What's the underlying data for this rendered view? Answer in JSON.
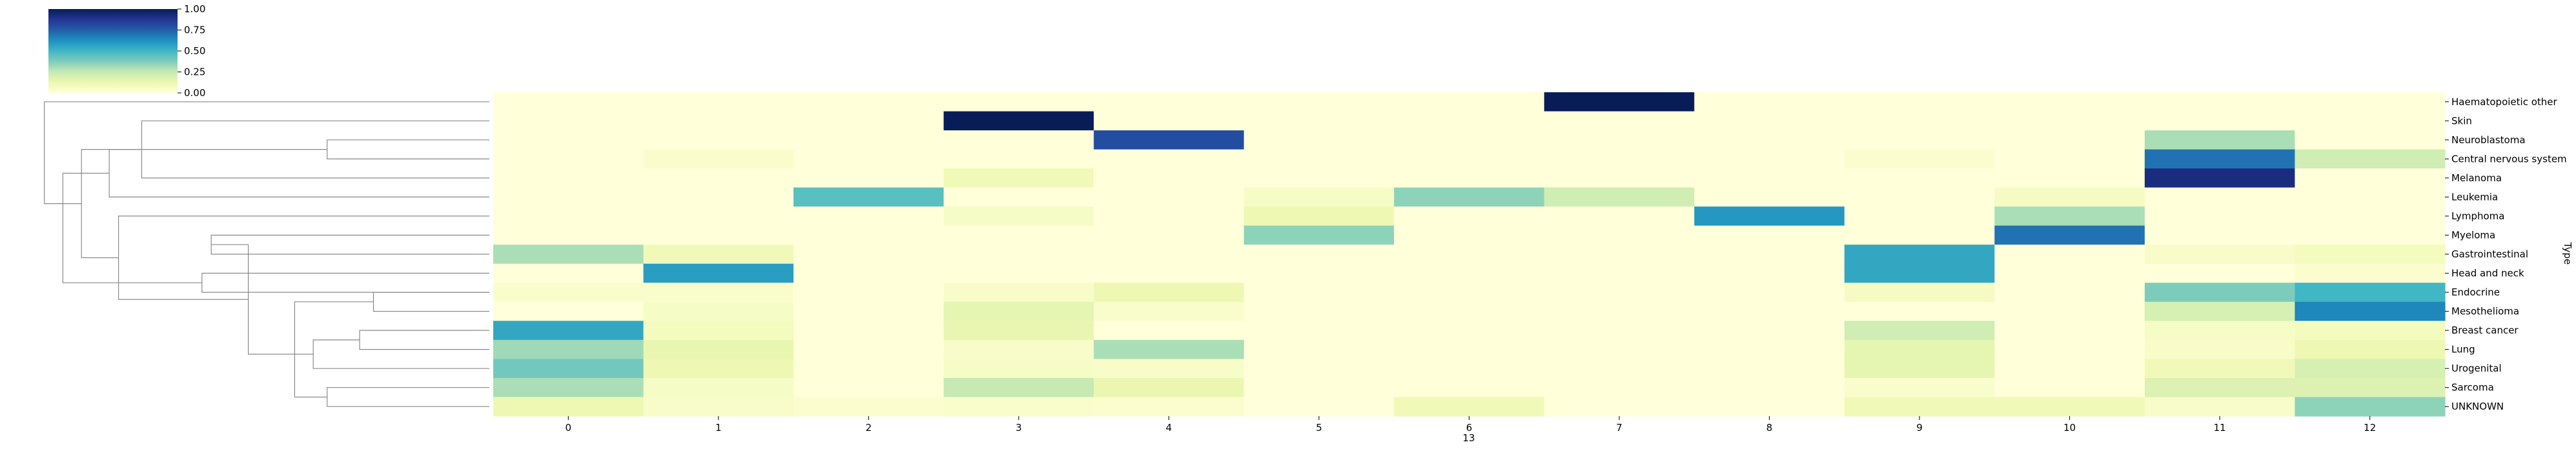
{
  "chart_data": {
    "type": "heatmap",
    "xlabel": "13",
    "ylabel": "Type",
    "colormap": "YlGnBu",
    "value_range": [
      0,
      1
    ],
    "colorbar_ticks": [
      "0.00",
      "0.25",
      "0.50",
      "0.75",
      "1.00"
    ],
    "columns": [
      "0",
      "1",
      "2",
      "3",
      "4",
      "5",
      "6",
      "7",
      "8",
      "9",
      "10",
      "11",
      "12"
    ],
    "rows": [
      "Haematopoietic other",
      "Skin",
      "Neuroblastoma",
      "Central nervous system",
      "Melanoma",
      "Leukemia",
      "Lymphoma",
      "Myeloma",
      "Gastrointestinal",
      "Head and neck",
      "Endocrine",
      "Mesothelioma",
      "Breast cancer",
      "Lung",
      "Urogenital",
      "Sarcoma",
      "UNKNOWN"
    ],
    "values": [
      [
        0.0,
        0.0,
        0.0,
        0.0,
        0.0,
        0.0,
        0.0,
        1.0,
        0.0,
        0.0,
        0.0,
        0.0,
        0.0
      ],
      [
        0.0,
        0.0,
        0.0,
        1.0,
        0.0,
        0.0,
        0.0,
        0.0,
        0.0,
        0.0,
        0.0,
        0.0,
        0.0
      ],
      [
        0.0,
        0.0,
        0.0,
        0.0,
        0.8,
        0.0,
        0.0,
        0.0,
        0.0,
        0.0,
        0.0,
        0.3,
        0.0
      ],
      [
        0.0,
        0.04,
        0.0,
        0.0,
        0.0,
        0.0,
        0.0,
        0.0,
        0.0,
        0.03,
        0.0,
        0.7,
        0.22
      ],
      [
        0.0,
        0.0,
        0.0,
        0.1,
        0.0,
        0.0,
        0.0,
        0.0,
        0.0,
        0.0,
        0.0,
        0.92,
        0.0
      ],
      [
        0.0,
        0.0,
        0.45,
        0.0,
        0.0,
        0.06,
        0.35,
        0.22,
        0.0,
        0.0,
        0.07,
        0.0,
        0.0
      ],
      [
        0.0,
        0.0,
        0.0,
        0.06,
        0.0,
        0.12,
        0.0,
        0.0,
        0.6,
        0.0,
        0.3,
        0.0,
        0.0
      ],
      [
        0.0,
        0.0,
        0.0,
        0.0,
        0.0,
        0.35,
        0.0,
        0.0,
        0.0,
        0.0,
        0.7,
        0.0,
        0.0
      ],
      [
        0.3,
        0.1,
        0.0,
        0.0,
        0.0,
        0.0,
        0.0,
        0.0,
        0.0,
        0.55,
        0.0,
        0.05,
        0.08
      ],
      [
        0.0,
        0.58,
        0.0,
        0.0,
        0.0,
        0.0,
        0.0,
        0.0,
        0.0,
        0.55,
        0.0,
        0.0,
        0.03
      ],
      [
        0.04,
        0.04,
        0.0,
        0.05,
        0.12,
        0.0,
        0.0,
        0.0,
        0.0,
        0.07,
        0.0,
        0.38,
        0.5
      ],
      [
        0.0,
        0.06,
        0.0,
        0.15,
        0.04,
        0.0,
        0.0,
        0.0,
        0.0,
        0.0,
        0.0,
        0.2,
        0.65
      ],
      [
        0.55,
        0.08,
        0.0,
        0.14,
        0.0,
        0.0,
        0.0,
        0.0,
        0.0,
        0.22,
        0.0,
        0.06,
        0.08
      ],
      [
        0.32,
        0.14,
        0.0,
        0.05,
        0.3,
        0.0,
        0.0,
        0.0,
        0.0,
        0.15,
        0.0,
        0.05,
        0.12
      ],
      [
        0.4,
        0.12,
        0.0,
        0.06,
        0.05,
        0.0,
        0.0,
        0.0,
        0.0,
        0.15,
        0.0,
        0.1,
        0.2
      ],
      [
        0.3,
        0.06,
        0.0,
        0.25,
        0.13,
        0.0,
        0.0,
        0.0,
        0.0,
        0.04,
        0.0,
        0.18,
        0.18
      ],
      [
        0.12,
        0.05,
        0.03,
        0.04,
        0.03,
        0.0,
        0.1,
        0.0,
        0.0,
        0.1,
        0.1,
        0.05,
        0.35
      ]
    ],
    "row_dendrogram": {
      "merges": [
        [
          2,
          3,
          0.35
        ],
        [
          7,
          8,
          0.6
        ],
        [
          10,
          11,
          0.25
        ],
        [
          12,
          13,
          0.28
        ],
        [
          15,
          16,
          0.35
        ],
        [
          14,
          20,
          0.38
        ],
        [
          19,
          21,
          0.42
        ],
        [
          18,
          22,
          0.52
        ],
        [
          9,
          10,
          0.62
        ],
        [
          1,
          4,
          0.75
        ],
        [
          6,
          24,
          0.8
        ],
        [
          5,
          26,
          0.82
        ],
        [
          17,
          27,
          0.88
        ],
        [
          25,
          28,
          0.92
        ],
        [
          0,
          29,
          0.96
        ]
      ]
    }
  }
}
